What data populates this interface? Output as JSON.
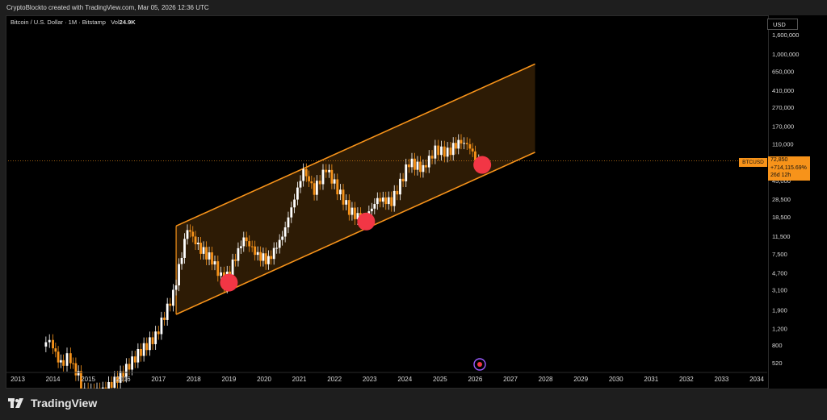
{
  "header": {
    "credit": "CryptoBlockto created with TradingView.com, Mar 05, 2026 12:36 UTC"
  },
  "symbol": {
    "name": "Bitcoin / U.S. Dollar · 1M · Bitstamp",
    "vol_label": "Vol",
    "vol_value": "24.9K"
  },
  "currency": "USD",
  "last_price": {
    "symbol": "BTCUSD",
    "price": "72,850",
    "change": "+714,115.69%",
    "countdown": "26d 12h"
  },
  "brand": "TradingView",
  "colors": {
    "channel": "#f7931a",
    "up": "#ffffff",
    "down": "#f7931a",
    "marker": "#f23645",
    "background": "#000000"
  },
  "chart_data": {
    "type": "candlestick",
    "scale": "log",
    "x_ticks": [
      "2013",
      "2014",
      "2015",
      "2016",
      "2017",
      "2018",
      "2019",
      "2020",
      "2021",
      "2022",
      "2023",
      "2024",
      "2025",
      "2026",
      "2027",
      "2028",
      "2029",
      "2030",
      "2031",
      "2032",
      "2033",
      "2034"
    ],
    "y_ticks": [
      {
        "label": "1,600,000",
        "value": 1600000
      },
      {
        "label": "1,000,000",
        "value": 1000000
      },
      {
        "label": "650,000",
        "value": 650000
      },
      {
        "label": "410,000",
        "value": 410000
      },
      {
        "label": "270,000",
        "value": 270000
      },
      {
        "label": "170,000",
        "value": 170000
      },
      {
        "label": "110,000",
        "value": 110000
      },
      {
        "label": "45,000",
        "value": 45000
      },
      {
        "label": "28,500",
        "value": 28500
      },
      {
        "label": "18,500",
        "value": 18500
      },
      {
        "label": "11,500",
        "value": 11500
      },
      {
        "label": "7,500",
        "value": 7500
      },
      {
        "label": "4,700",
        "value": 4700
      },
      {
        "label": "3,100",
        "value": 3100
      },
      {
        "label": "1,900",
        "value": 1900
      },
      {
        "label": "1,200",
        "value": 1200
      },
      {
        "label": "800",
        "value": 800
      },
      {
        "label": "520",
        "value": 520
      }
    ],
    "channel": {
      "upper": [
        {
          "t": 2017.5,
          "price": 14800
        },
        {
          "t": 2027.7,
          "price": 780000
        }
      ],
      "lower": [
        {
          "t": 2017.5,
          "price": 1700
        },
        {
          "t": 2027.7,
          "price": 90000
        }
      ]
    },
    "touch_points": [
      {
        "t": 2019.0,
        "price": 3700
      },
      {
        "t": 2022.9,
        "price": 16500
      },
      {
        "t": 2026.2,
        "price": 66000
      }
    ],
    "series": [
      {
        "t": 2013.8,
        "price": 1100
      },
      {
        "t": 2014.0,
        "price": 850
      },
      {
        "t": 2014.3,
        "price": 500
      },
      {
        "t": 2014.5,
        "price": 600
      },
      {
        "t": 2014.8,
        "price": 380
      },
      {
        "t": 2015.0,
        "price": 250
      },
      {
        "t": 2015.5,
        "price": 260
      },
      {
        "t": 2016.0,
        "price": 380
      },
      {
        "t": 2016.5,
        "price": 650
      },
      {
        "t": 2017.0,
        "price": 1000
      },
      {
        "t": 2017.5,
        "price": 2800
      },
      {
        "t": 2017.9,
        "price": 14000
      },
      {
        "t": 2018.2,
        "price": 9000
      },
      {
        "t": 2018.6,
        "price": 6500
      },
      {
        "t": 2018.95,
        "price": 3700
      },
      {
        "t": 2019.5,
        "price": 11000
      },
      {
        "t": 2019.9,
        "price": 7200
      },
      {
        "t": 2020.2,
        "price": 6400
      },
      {
        "t": 2020.6,
        "price": 11500
      },
      {
        "t": 2020.95,
        "price": 29000
      },
      {
        "t": 2021.2,
        "price": 58000
      },
      {
        "t": 2021.5,
        "price": 35000
      },
      {
        "t": 2021.85,
        "price": 61000
      },
      {
        "t": 2022.0,
        "price": 47000
      },
      {
        "t": 2022.5,
        "price": 22000
      },
      {
        "t": 2022.9,
        "price": 16500
      },
      {
        "t": 2023.3,
        "price": 28500
      },
      {
        "t": 2023.7,
        "price": 27000
      },
      {
        "t": 2023.95,
        "price": 42000
      },
      {
        "t": 2024.2,
        "price": 71000
      },
      {
        "t": 2024.6,
        "price": 60000
      },
      {
        "t": 2024.95,
        "price": 96000
      },
      {
        "t": 2025.3,
        "price": 90000
      },
      {
        "t": 2025.6,
        "price": 115000
      },
      {
        "t": 2025.85,
        "price": 110000
      },
      {
        "t": 2026.0,
        "price": 88000
      },
      {
        "t": 2026.2,
        "price": 72850
      }
    ]
  }
}
